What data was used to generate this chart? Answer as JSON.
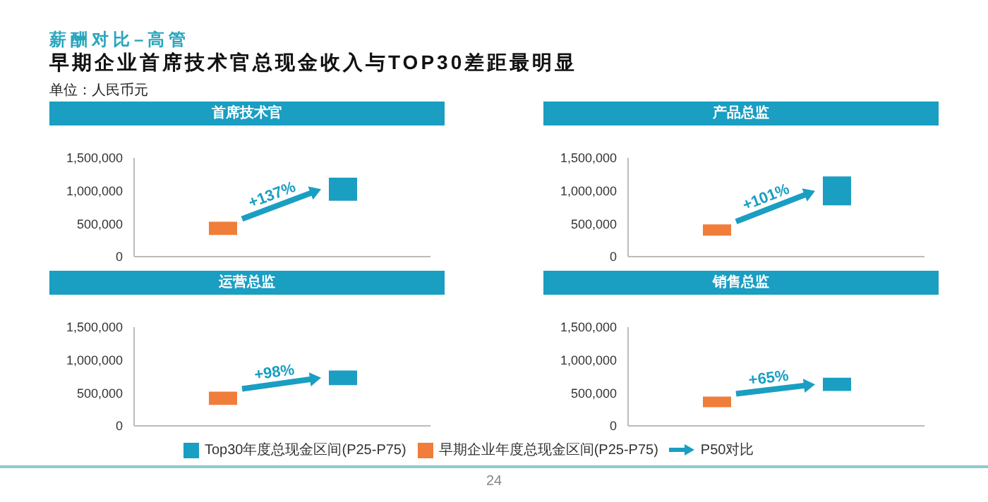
{
  "chart_data": [
    {
      "type": "other",
      "title": "薪酬对比–高管",
      "subtitle": "早期企业首席技术官总现金收入与TOP30差距最明显",
      "annotations": [
        "单位：人民币元",
        "P50对比",
        "24"
      ]
    },
    {
      "type": "bar",
      "title": "首席技术官",
      "categories": [
        null,
        null
      ],
      "ylim": [
        0,
        1500000
      ],
      "yticks": [
        {
          "value": 0,
          "label": "0"
        },
        {
          "value": 500000,
          "label": "500,000"
        },
        {
          "value": 1000000,
          "label": "1,000,000"
        },
        {
          "value": 1500000,
          "label": "1,500,000"
        }
      ],
      "tick_labels": "y",
      "legend": "bottom",
      "annotations": [
        "+137%"
      ],
      "series": [
        {
          "name": "Top30年度总现金区间(P25-P75)",
          "color": "#1a9ec2",
          "values": [
            null,
            350000
          ],
          "base": [
            null,
            850000
          ]
        },
        {
          "name": "早期企业年度总现金区间(P25-P75)",
          "color": "#f07d3a",
          "values": [
            200000,
            null
          ],
          "base": [
            330000,
            null
          ]
        }
      ]
    },
    {
      "type": "bar",
      "title": "产品总监",
      "categories": [
        null,
        null
      ],
      "ylim": [
        0,
        1500000
      ],
      "yticks": [
        {
          "value": 0,
          "label": "0"
        },
        {
          "value": 500000,
          "label": "500,000"
        },
        {
          "value": 1000000,
          "label": "1,000,000"
        },
        {
          "value": 1500000,
          "label": "1,500,000"
        }
      ],
      "tick_labels": "y",
      "annotations": [
        "+101%"
      ],
      "series": [
        {
          "color": "#1a9ec2",
          "values": [
            null,
            440000
          ],
          "base": [
            null,
            780000
          ]
        },
        {
          "color": "#f07d3a",
          "values": [
            170000,
            null
          ],
          "base": [
            320000,
            null
          ]
        }
      ]
    },
    {
      "type": "bar",
      "title": "运营总监",
      "categories": [
        null,
        null
      ],
      "ylim": [
        0,
        1500000
      ],
      "yticks": [
        {
          "value": 0,
          "label": "0"
        },
        {
          "value": 500000,
          "label": "500,000"
        },
        {
          "value": 1000000,
          "label": "1,000,000"
        },
        {
          "value": 1500000,
          "label": "1,500,000"
        }
      ],
      "tick_labels": "y",
      "annotations": [
        "+98%"
      ],
      "series": [
        {
          "color": "#1a9ec2",
          "values": [
            null,
            220000
          ],
          "base": [
            null,
            620000
          ]
        },
        {
          "color": "#f07d3a",
          "values": [
            200000,
            null
          ],
          "base": [
            320000,
            null
          ]
        }
      ]
    },
    {
      "type": "bar",
      "title": "销售总监",
      "categories": [
        null,
        null
      ],
      "ylim": [
        0,
        1500000
      ],
      "yticks": [
        {
          "value": 0,
          "label": "0"
        },
        {
          "value": 500000,
          "label": "500,000"
        },
        {
          "value": 1000000,
          "label": "1,000,000"
        },
        {
          "value": 1500000,
          "label": "1,500,000"
        }
      ],
      "tick_labels": "y",
      "annotations": [
        "+65%"
      ],
      "series": [
        {
          "color": "#1a9ec2",
          "values": [
            null,
            200000
          ],
          "base": [
            null,
            530000
          ]
        },
        {
          "color": "#f07d3a",
          "values": [
            160000,
            null
          ],
          "base": [
            285000,
            null
          ]
        }
      ]
    }
  ]
}
